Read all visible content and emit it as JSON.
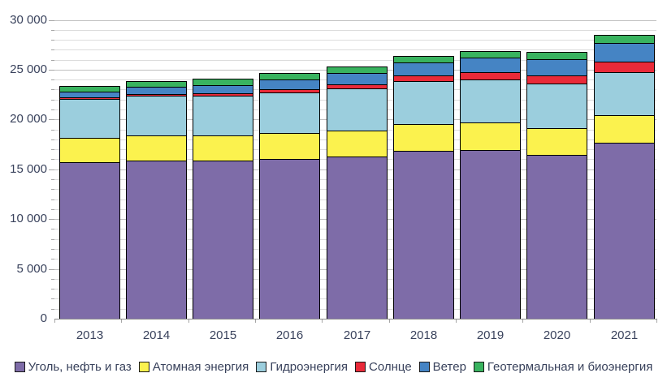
{
  "chart_data": {
    "type": "bar",
    "stacked": true,
    "title": "",
    "xlabel": "",
    "ylabel": "",
    "categories": [
      "2013",
      "2014",
      "2015",
      "2016",
      "2017",
      "2018",
      "2019",
      "2020",
      "2021"
    ],
    "series": [
      {
        "name": "Уголь, нефть и газ",
        "color": "#7e6ca8",
        "values": [
          15700,
          15850,
          15850,
          16000,
          16250,
          16850,
          16900,
          16450,
          17650
        ]
      },
      {
        "name": "Атомная энергия",
        "color": "#fbf24e",
        "values": [
          2480,
          2535,
          2570,
          2610,
          2640,
          2700,
          2790,
          2690,
          2800
        ]
      },
      {
        "name": "Гидроэнергия",
        "color": "#9bcedd",
        "values": [
          3875,
          3985,
          3980,
          4115,
          4200,
          4320,
          4340,
          4460,
          4330
        ]
      },
      {
        "name": "Солнце",
        "color": "#e92a39",
        "values": [
          135,
          200,
          255,
          330,
          445,
          585,
          725,
          855,
          1055
        ]
      },
      {
        "name": "Ветер",
        "color": "#4584c4",
        "values": [
          645,
          715,
          830,
          960,
          1135,
          1270,
          1425,
          1595,
          1870
        ]
      },
      {
        "name": "Геотермальная и биоэнергия",
        "color": "#39b35f",
        "values": [
          535,
          575,
          605,
          635,
          660,
          690,
          710,
          725,
          755
        ]
      }
    ],
    "ylim": [
      0,
      30000
    ],
    "y_major_interval": 5000,
    "y_minor_interval": 1000,
    "y_tick_labels": [
      "0",
      "5 000",
      "10 000",
      "15 000",
      "20 000",
      "25 000",
      "30 000"
    ],
    "grid": "horizontal-minor-and-major",
    "legend_position": "bottom",
    "colors": {
      "text": "#39425c",
      "gridline_minor": "#dcdcdc",
      "gridline_major": "#c0c0c0",
      "axis": "#8c8c8c",
      "bar_border": "#000000",
      "background": "#ffffff"
    }
  }
}
